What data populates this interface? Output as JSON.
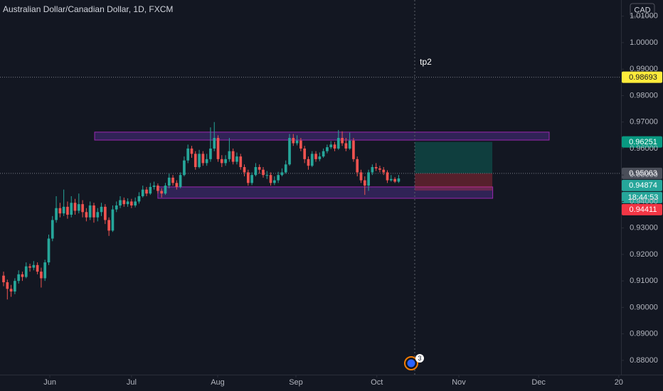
{
  "chart_data": {
    "type": "candlestick",
    "title": "Australian Dollar/Canadian Dollar, 1D, FXCM",
    "currency": "CAD",
    "up_color": "#26a69a",
    "down_color": "#ef5350",
    "grid": false,
    "xlim": [
      -0.95,
      164.1
    ],
    "ylim": [
      0.8746,
      1.0161
    ],
    "xticks": [
      {
        "value": 12.3,
        "label": "Jun"
      },
      {
        "value": 34,
        "label": "Jul"
      },
      {
        "value": 56.9,
        "label": "Aug"
      },
      {
        "value": 77.7,
        "label": "Sep"
      },
      {
        "value": 99.2,
        "label": "Oct"
      },
      {
        "value": 121,
        "label": "Nov"
      },
      {
        "value": 142.2,
        "label": "Dec"
      },
      {
        "value": 163.5,
        "label": "20"
      }
    ],
    "yticks": [
      {
        "value": 0.88,
        "label": "0.88000"
      },
      {
        "value": 0.89,
        "label": "0.89000"
      },
      {
        "value": 0.9,
        "label": "0.90000"
      },
      {
        "value": 0.91,
        "label": "0.91000"
      },
      {
        "value": 0.92,
        "label": "0.92000"
      },
      {
        "value": 0.93,
        "label": "0.93000"
      },
      {
        "value": 0.94,
        "label": "0.94000"
      },
      {
        "value": 0.95,
        "label": "0.95000"
      },
      {
        "value": 0.96,
        "label": "0.96000"
      },
      {
        "value": 0.97,
        "label": "0.97000"
      },
      {
        "value": 0.98,
        "label": "0.98000"
      },
      {
        "value": 0.99,
        "label": "0.99000"
      },
      {
        "value": 1,
        "label": "1.00000"
      },
      {
        "value": 1.01,
        "label": "1.01000"
      }
    ],
    "ohlc": [
      [
        0.912,
        0.9135,
        0.908,
        0.9095
      ],
      [
        0.9095,
        0.9105,
        0.903,
        0.907
      ],
      [
        0.907,
        0.9085,
        0.904,
        0.906
      ],
      [
        0.906,
        0.911,
        0.905,
        0.91
      ],
      [
        0.91,
        0.914,
        0.909,
        0.9125
      ],
      [
        0.9125,
        0.9135,
        0.91,
        0.9115
      ],
      [
        0.9115,
        0.917,
        0.911,
        0.9155
      ],
      [
        0.9155,
        0.9165,
        0.9135,
        0.915
      ],
      [
        0.915,
        0.9175,
        0.914,
        0.916
      ],
      [
        0.916,
        0.917,
        0.9125,
        0.9135
      ],
      [
        0.9135,
        0.915,
        0.9075,
        0.911
      ],
      [
        0.911,
        0.918,
        0.91,
        0.917
      ],
      [
        0.917,
        0.9275,
        0.916,
        0.926
      ],
      [
        0.926,
        0.9345,
        0.925,
        0.933
      ],
      [
        0.933,
        0.942,
        0.932,
        0.9375
      ],
      [
        0.9375,
        0.9395,
        0.934,
        0.9355
      ],
      [
        0.9355,
        0.9445,
        0.9345,
        0.938
      ],
      [
        0.938,
        0.94,
        0.9335,
        0.935
      ],
      [
        0.935,
        0.942,
        0.934,
        0.9395
      ],
      [
        0.9395,
        0.941,
        0.935,
        0.9365
      ],
      [
        0.9365,
        0.943,
        0.9355,
        0.939
      ],
      [
        0.939,
        0.9405,
        0.934,
        0.936
      ],
      [
        0.936,
        0.9375,
        0.9325,
        0.934
      ],
      [
        0.934,
        0.94,
        0.933,
        0.9385
      ],
      [
        0.9385,
        0.9395,
        0.932,
        0.934
      ],
      [
        0.934,
        0.9375,
        0.9325,
        0.936
      ],
      [
        0.936,
        0.9395,
        0.9345,
        0.938
      ],
      [
        0.938,
        0.939,
        0.9315,
        0.933
      ],
      [
        0.933,
        0.934,
        0.927,
        0.929
      ],
      [
        0.929,
        0.9385,
        0.9285,
        0.937
      ],
      [
        0.937,
        0.94,
        0.936,
        0.9385
      ],
      [
        0.9385,
        0.942,
        0.9375,
        0.9405
      ],
      [
        0.9405,
        0.9415,
        0.938,
        0.939
      ],
      [
        0.939,
        0.9412,
        0.938,
        0.94
      ],
      [
        0.94,
        0.941,
        0.9375,
        0.9385
      ],
      [
        0.9385,
        0.9415,
        0.9378,
        0.94
      ],
      [
        0.94,
        0.9435,
        0.9392,
        0.942
      ],
      [
        0.942,
        0.946,
        0.9415,
        0.9445
      ],
      [
        0.9445,
        0.9455,
        0.942,
        0.943
      ],
      [
        0.943,
        0.947,
        0.9425,
        0.9455
      ],
      [
        0.9455,
        0.9475,
        0.9445,
        0.946
      ],
      [
        0.946,
        0.9468,
        0.943,
        0.944
      ],
      [
        0.944,
        0.945,
        0.9415,
        0.943
      ],
      [
        0.943,
        0.947,
        0.9425,
        0.946
      ],
      [
        0.946,
        0.9505,
        0.945,
        0.949
      ],
      [
        0.949,
        0.95,
        0.946,
        0.947
      ],
      [
        0.947,
        0.948,
        0.9445,
        0.9455
      ],
      [
        0.9455,
        0.951,
        0.945,
        0.95
      ],
      [
        0.95,
        0.957,
        0.9495,
        0.9555
      ],
      [
        0.9555,
        0.9615,
        0.9545,
        0.96
      ],
      [
        0.96,
        0.961,
        0.9565,
        0.958
      ],
      [
        0.958,
        0.959,
        0.952,
        0.953
      ],
      [
        0.953,
        0.9595,
        0.9525,
        0.958
      ],
      [
        0.958,
        0.959,
        0.9535,
        0.9545
      ],
      [
        0.9545,
        0.958,
        0.9535,
        0.956
      ],
      [
        0.956,
        0.968,
        0.955,
        0.96
      ],
      [
        0.96,
        0.97,
        0.959,
        0.964
      ],
      [
        0.964,
        0.965,
        0.955,
        0.956
      ],
      [
        0.956,
        0.9575,
        0.953,
        0.9545
      ],
      [
        0.9545,
        0.9575,
        0.9535,
        0.956
      ],
      [
        0.956,
        0.964,
        0.955,
        0.959
      ],
      [
        0.959,
        0.96,
        0.954,
        0.955
      ],
      [
        0.955,
        0.9585,
        0.954,
        0.957
      ],
      [
        0.957,
        0.958,
        0.952,
        0.953
      ],
      [
        0.953,
        0.954,
        0.9495,
        0.951
      ],
      [
        0.951,
        0.952,
        0.946,
        0.947
      ],
      [
        0.947,
        0.951,
        0.9462,
        0.95
      ],
      [
        0.95,
        0.9545,
        0.9495,
        0.953
      ],
      [
        0.953,
        0.954,
        0.9505,
        0.952
      ],
      [
        0.952,
        0.953,
        0.949,
        0.95
      ],
      [
        0.95,
        0.9515,
        0.9485,
        0.95
      ],
      [
        0.95,
        0.951,
        0.946,
        0.947
      ],
      [
        0.947,
        0.9495,
        0.9462,
        0.948
      ],
      [
        0.948,
        0.9512,
        0.947,
        0.95
      ],
      [
        0.95,
        0.9525,
        0.9495,
        0.951
      ],
      [
        0.951,
        0.9555,
        0.9505,
        0.954
      ],
      [
        0.954,
        0.9655,
        0.9535,
        0.964
      ],
      [
        0.964,
        0.9655,
        0.961,
        0.962
      ],
      [
        0.962,
        0.965,
        0.9612,
        0.963
      ],
      [
        0.963,
        0.964,
        0.959,
        0.96
      ],
      [
        0.96,
        0.961,
        0.9545,
        0.956
      ],
      [
        0.956,
        0.957,
        0.952,
        0.9535
      ],
      [
        0.9535,
        0.959,
        0.953,
        0.958
      ],
      [
        0.958,
        0.959,
        0.955,
        0.956
      ],
      [
        0.956,
        0.9585,
        0.9552,
        0.957
      ],
      [
        0.957,
        0.96,
        0.9565,
        0.959
      ],
      [
        0.959,
        0.9615,
        0.9582,
        0.9605
      ],
      [
        0.9605,
        0.9628,
        0.9598,
        0.9615
      ],
      [
        0.9615,
        0.9625,
        0.959,
        0.96
      ],
      [
        0.96,
        0.967,
        0.9595,
        0.964
      ],
      [
        0.964,
        0.9665,
        0.961,
        0.962
      ],
      [
        0.962,
        0.964,
        0.959,
        0.96
      ],
      [
        0.96,
        0.966,
        0.9595,
        0.963
      ],
      [
        0.963,
        0.964,
        0.955,
        0.956
      ],
      [
        0.956,
        0.957,
        0.9495,
        0.951
      ],
      [
        0.951,
        0.952,
        0.947,
        0.948
      ],
      [
        0.948,
        0.9495,
        0.9425,
        0.946
      ],
      [
        0.946,
        0.952,
        0.944,
        0.951
      ],
      [
        0.951,
        0.954,
        0.95,
        0.953
      ],
      [
        0.953,
        0.9545,
        0.9515,
        0.9525
      ],
      [
        0.9525,
        0.9535,
        0.951,
        0.952
      ],
      [
        0.952,
        0.953,
        0.95,
        0.951
      ],
      [
        0.951,
        0.9518,
        0.947,
        0.948
      ],
      [
        0.948,
        0.95,
        0.9475,
        0.9485
      ],
      [
        0.9485,
        0.9492,
        0.947,
        0.9475
      ],
      [
        0.9475,
        0.95,
        0.947,
        0.9487
      ]
    ],
    "zones": [
      {
        "x": [
          24.2,
          145
        ],
        "y": [
          0.9632,
          0.9662
        ]
      },
      {
        "x": [
          41,
          130
        ],
        "y": [
          0.9412,
          0.9455
        ]
      }
    ],
    "position": {
      "x": [
        109.3,
        129.9
      ],
      "entry": 0.95063,
      "target": 0.96251,
      "stop": 0.94411
    },
    "annotation": {
      "text": "tp2",
      "x": 112.2,
      "y": 0.9925
    },
    "markers": [
      {
        "value": 0.98693,
        "color": "#ffeb3b",
        "text_color": "#131722",
        "line": true
      },
      {
        "value": 0.96251,
        "color": "#089981",
        "text_color": "#ffffff",
        "line": false
      },
      {
        "value": 0.95063,
        "color": "#4a4e59",
        "text_color": "#ffffff",
        "line": true
      },
      {
        "value": 0.94874,
        "color": "#26a69a",
        "text_color": "#ffffff",
        "line": false,
        "countdown": "18:44:53"
      },
      {
        "value": 0.94411,
        "color": "#f23645",
        "text_color": "#ffffff",
        "line": false
      }
    ],
    "event_badge": "3"
  }
}
